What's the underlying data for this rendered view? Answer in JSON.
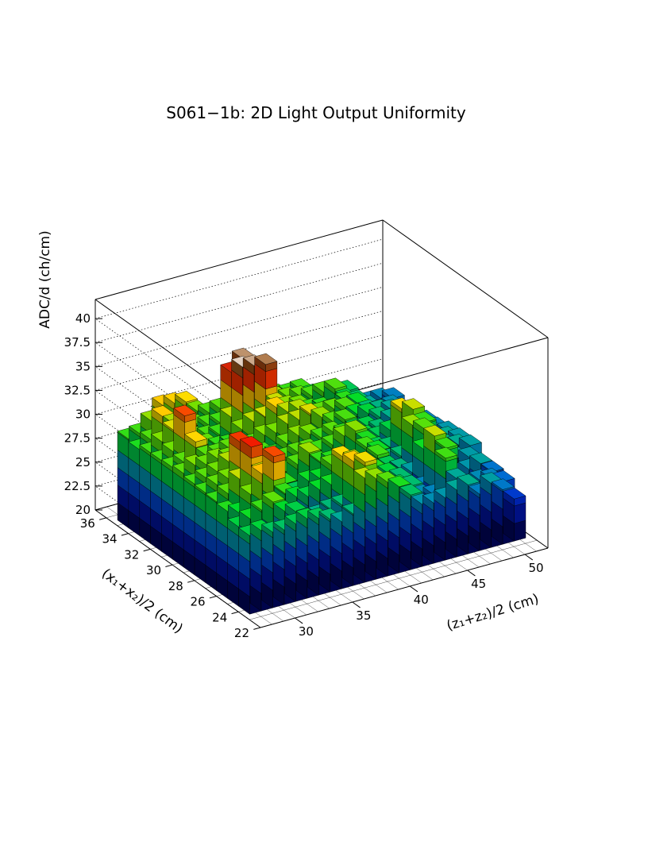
{
  "chart_data": {
    "type": "lego3d",
    "title": "S061−1b: 2D Light Output Uniformity",
    "xlabel": "(z₁+z₂)/2 (cm)",
    "ylabel": "(x₁+x₂)/2 (cm)",
    "zlabel": "ADC/d (ch/cm)",
    "x_range": [
      27,
      52
    ],
    "y_range": [
      22,
      37
    ],
    "z_range": [
      20,
      42
    ],
    "x_ticks": [
      "30",
      "35",
      "40",
      "45",
      "50"
    ],
    "y_ticks": [
      "22",
      "24",
      "26",
      "28",
      "30",
      "32",
      "34",
      "36"
    ],
    "z_ticks": [
      "20",
      "22.5",
      "25",
      "27.5",
      "30",
      "32.5",
      "35",
      "37.5",
      "40"
    ],
    "x_tick_values": [
      30,
      35,
      40,
      45,
      50
    ],
    "y_tick_values": [
      22,
      24,
      26,
      28,
      30,
      32,
      34,
      36
    ],
    "z_tick_values": [
      20,
      22.5,
      25,
      27.5,
      30,
      32.5,
      35,
      37.5,
      40
    ],
    "x_bins": [
      28,
      29,
      30,
      31,
      32,
      33,
      34,
      35,
      36,
      37,
      38,
      39,
      40,
      41,
      42,
      43,
      44,
      45,
      46,
      47,
      48,
      49,
      50,
      51
    ],
    "y_bins": [
      24,
      25,
      26,
      27,
      28,
      29,
      30,
      31,
      32,
      33,
      34,
      35
    ],
    "values": [
      [
        28.2,
        28.4,
        27.9,
        27.8,
        28.1,
        28.3,
        28.0,
        27.6,
        27.0,
        27.5,
        30.9,
        30.5,
        29.8,
        29.0,
        27.8,
        26.5,
        26.3,
        26.5,
        27.0,
        27.2,
        25.9,
        26.7,
        25.7,
        24.4
      ],
      [
        28.3,
        28.8,
        29.4,
        29.9,
        28.6,
        28.2,
        27.2,
        27.2,
        27.5,
        27.6,
        31.8,
        31.4,
        28.9,
        28.6,
        28.0,
        27.6,
        26.3,
        26.0,
        29.5,
        27.0,
        25.4,
        26.2,
        26.0,
        25.4
      ],
      [
        29.1,
        28.6,
        30.2,
        32.0,
        33.5,
        29.3,
        28.6,
        28.3,
        28.7,
        28.9,
        31.5,
        30.8,
        30.1,
        29.1,
        28.4,
        27.6,
        26.3,
        26.0,
        31.0,
        29.4,
        26.4,
        26.5,
        26.8,
        25.6
      ],
      [
        29.3,
        29.8,
        31.0,
        34.0,
        31.0,
        29.7,
        29.2,
        28.0,
        28.8,
        28.7,
        29.8,
        29.4,
        29.1,
        28.6,
        29.5,
        28.0,
        27.4,
        26.7,
        28.8,
        28.5,
        27.5,
        26.9,
        26.6,
        25.2
      ],
      [
        29.4,
        29.9,
        30.2,
        33.7,
        29.5,
        29.4,
        29.2,
        29.3,
        29.7,
        30.6,
        29.3,
        29.1,
        28.8,
        28.4,
        29.5,
        28.8,
        27.6,
        27.6,
        30.5,
        29.8,
        28.6,
        27.4,
        27.1,
        26.7
      ],
      [
        29.5,
        29.8,
        30.1,
        30.8,
        29.9,
        29.8,
        29.7,
        29.7,
        29.6,
        29.8,
        29.8,
        29.4,
        29.6,
        30.2,
        30.4,
        29.0,
        28.0,
        27.7,
        31.4,
        31.0,
        29.3,
        27.4,
        27.1,
        26.6
      ],
      [
        29.8,
        30.3,
        30.0,
        30.3,
        30.1,
        29.4,
        29.0,
        29.6,
        29.1,
        29.9,
        30.4,
        30.2,
        29.5,
        29.8,
        29.3,
        29.0,
        28.4,
        28.0,
        28.3,
        28.0,
        27.7,
        26.9,
        26.7,
        26.5
      ],
      [
        29.6,
        29.8,
        31.6,
        29.8,
        29.7,
        29.9,
        29.6,
        29.7,
        30.3,
        30.2,
        30.8,
        30.9,
        31.2,
        30.5,
        29.7,
        29.6,
        28.3,
        28.2,
        27.6,
        27.1,
        27.1,
        26.8,
        26.4,
        26.1
      ],
      [
        29.5,
        30.1,
        33.5,
        30.0,
        29.9,
        29.3,
        29.2,
        30.4,
        30.9,
        31.1,
        31.7,
        30.9,
        30.8,
        30.0,
        29.9,
        29.9,
        29.7,
        28.7,
        28.4,
        27.7,
        27.2,
        27.0,
        26.4,
        26.0
      ],
      [
        29.5,
        30.3,
        31.2,
        31.2,
        29.8,
        29.6,
        29.4,
        30.9,
        35.8,
        35.6,
        35.4,
        31.0,
        30.4,
        30.1,
        29.4,
        29.2,
        28.8,
        29.2,
        28.7,
        27.6,
        27.3,
        27.0,
        26.6,
        25.2
      ],
      [
        29.0,
        29.7,
        31.8,
        30.7,
        30.0,
        29.9,
        29.6,
        29.5,
        34.4,
        35.5,
        34.1,
        30.4,
        30.5,
        30.1,
        29.9,
        29.6,
        29.7,
        29.7,
        28.3,
        27.8,
        26.9,
        26.2,
        26.3,
        25.3
      ],
      [
        29.3,
        29.5,
        30.5,
        31.8,
        31.7,
        31.5,
        30.2,
        29.7,
        29.8,
        30.1,
        31.0,
        31.2,
        30.2,
        29.6,
        29.4,
        29.5,
        28.6,
        28.2,
        28.1,
        28.0,
        26.4,
        26.2,
        26.2,
        25.9
      ]
    ]
  }
}
